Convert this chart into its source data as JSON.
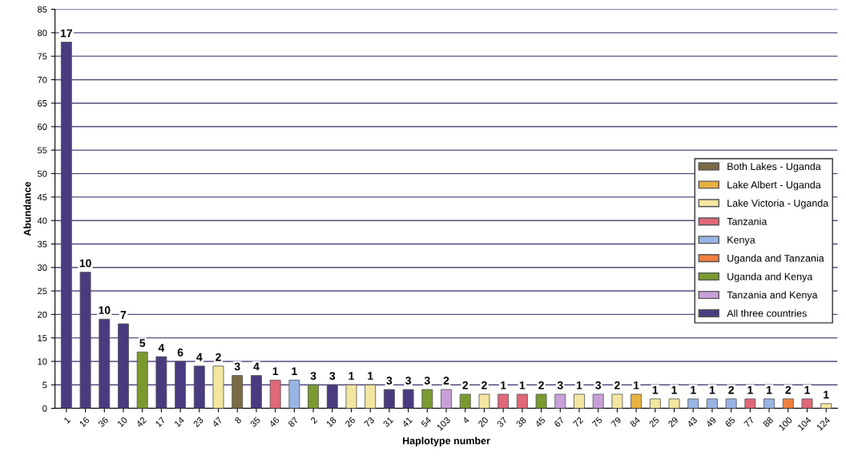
{
  "chart_data": {
    "type": "bar",
    "xlabel": "Haplotype number",
    "ylabel": "Abundance",
    "categories": [
      "1",
      "16",
      "36",
      "10",
      "42",
      "17",
      "14",
      "23",
      "47",
      "8",
      "35",
      "46",
      "87",
      "2",
      "18",
      "26",
      "73",
      "31",
      "41",
      "54",
      "103",
      "4",
      "20",
      "37",
      "38",
      "45",
      "67",
      "72",
      "75",
      "79",
      "84",
      "25",
      "29",
      "43",
      "49",
      "65",
      "77",
      "88",
      "100",
      "104",
      "124"
    ],
    "value_labels": [
      "17",
      "10",
      "10",
      "7",
      "5",
      "4",
      "6",
      "4",
      "2",
      "3",
      "4",
      "1",
      "1",
      "3",
      "3",
      "1",
      "1",
      "3",
      "3",
      "3",
      "2",
      "2",
      "2",
      "1",
      "1",
      "2",
      "3",
      "1",
      "3",
      "2",
      "1",
      "1",
      "1",
      "1",
      "1",
      "2",
      "1",
      "1",
      "2",
      "1",
      "1"
    ],
    "series": [
      {
        "name": "Both Lakes - Uganda",
        "color": "#7a6a45",
        "values": [
          null,
          null,
          null,
          null,
          null,
          null,
          null,
          null,
          null,
          7,
          null,
          null,
          null,
          null,
          null,
          null,
          null,
          null,
          null,
          null,
          null,
          null,
          null,
          null,
          null,
          null,
          null,
          null,
          null,
          null,
          null,
          null,
          null,
          null,
          null,
          null,
          null,
          null,
          null,
          null,
          null
        ]
      },
      {
        "name": "Lake Albert - Uganda",
        "color": "#e8b040",
        "values": [
          null,
          null,
          null,
          null,
          null,
          null,
          null,
          null,
          null,
          null,
          null,
          null,
          null,
          null,
          null,
          null,
          null,
          null,
          null,
          null,
          null,
          null,
          null,
          null,
          null,
          null,
          null,
          null,
          null,
          null,
          3,
          null,
          null,
          null,
          null,
          null,
          null,
          null,
          null,
          null,
          null
        ]
      },
      {
        "name": "Lake Victoria - Uganda",
        "color": "#f3e6a0",
        "values": [
          null,
          null,
          null,
          null,
          null,
          null,
          null,
          null,
          9,
          null,
          null,
          null,
          null,
          null,
          null,
          5,
          5,
          null,
          null,
          null,
          null,
          null,
          3,
          null,
          null,
          null,
          null,
          3,
          null,
          3,
          null,
          2,
          2,
          null,
          null,
          null,
          null,
          null,
          null,
          null,
          1
        ]
      },
      {
        "name": "Tanzania",
        "color": "#e06878",
        "values": [
          null,
          null,
          null,
          null,
          null,
          null,
          null,
          null,
          null,
          null,
          null,
          6,
          null,
          null,
          null,
          null,
          null,
          null,
          null,
          null,
          null,
          null,
          null,
          3,
          3,
          null,
          null,
          null,
          null,
          null,
          null,
          null,
          null,
          null,
          null,
          null,
          2,
          null,
          null,
          2,
          null
        ]
      },
      {
        "name": "Kenya",
        "color": "#98b4e4",
        "values": [
          null,
          null,
          null,
          null,
          null,
          null,
          null,
          null,
          null,
          null,
          null,
          null,
          6,
          null,
          null,
          null,
          null,
          null,
          null,
          null,
          null,
          null,
          null,
          null,
          null,
          null,
          null,
          null,
          null,
          null,
          null,
          null,
          null,
          2,
          2,
          2,
          null,
          2,
          null,
          null,
          null
        ]
      },
      {
        "name": "Uganda and Tanzania",
        "color": "#f08040",
        "values": [
          null,
          null,
          null,
          null,
          null,
          null,
          null,
          null,
          null,
          null,
          null,
          null,
          null,
          null,
          null,
          null,
          null,
          null,
          null,
          null,
          null,
          null,
          null,
          null,
          null,
          null,
          null,
          null,
          null,
          null,
          null,
          null,
          null,
          null,
          null,
          null,
          null,
          null,
          2,
          null,
          null
        ]
      },
      {
        "name": "Uganda and Kenya",
        "color": "#7a9a30",
        "values": [
          null,
          null,
          null,
          null,
          12,
          null,
          null,
          null,
          null,
          null,
          null,
          null,
          null,
          5,
          null,
          null,
          null,
          null,
          null,
          4,
          null,
          3,
          null,
          null,
          null,
          3,
          null,
          null,
          null,
          null,
          null,
          null,
          null,
          null,
          null,
          null,
          null,
          null,
          null,
          null,
          null
        ]
      },
      {
        "name": "Tanzania and Kenya",
        "color": "#c8a0d8",
        "values": [
          null,
          null,
          null,
          null,
          null,
          null,
          null,
          null,
          null,
          null,
          null,
          null,
          null,
          null,
          null,
          null,
          null,
          null,
          null,
          null,
          4,
          null,
          null,
          null,
          null,
          null,
          3,
          null,
          3,
          null,
          null,
          null,
          null,
          null,
          null,
          null,
          null,
          null,
          null,
          null,
          null
        ]
      },
      {
        "name": "All three countries",
        "color": "#4a3a80",
        "values": [
          78,
          29,
          19,
          18,
          null,
          11,
          10,
          9,
          null,
          null,
          7,
          null,
          null,
          null,
          5,
          null,
          null,
          4,
          4,
          null,
          null,
          null,
          null,
          null,
          null,
          null,
          null,
          null,
          null,
          null,
          null,
          null,
          null,
          null,
          null,
          null,
          null,
          null,
          null,
          null,
          null
        ]
      }
    ],
    "ylim": [
      0,
      85
    ],
    "yticks": [
      0,
      5,
      10,
      15,
      20,
      25,
      30,
      35,
      40,
      45,
      50,
      55,
      60,
      65,
      70,
      75,
      80,
      85
    ],
    "grid": "y",
    "legend": "right"
  }
}
